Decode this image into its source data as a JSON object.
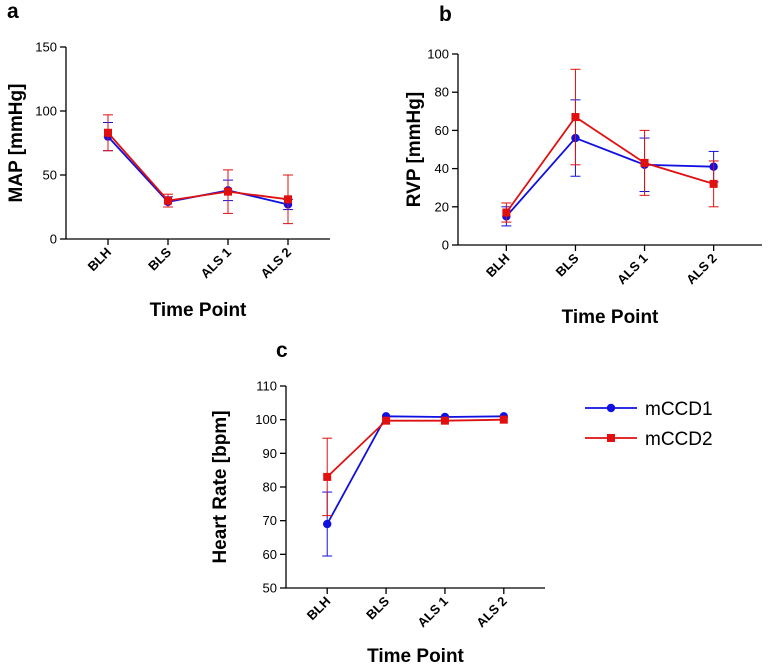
{
  "chart_data": [
    {
      "panel_label": "a",
      "type": "line",
      "categories": [
        "BLH",
        "BLS",
        "ALS 1",
        "ALS 2"
      ],
      "xlabel": "Time Point",
      "ylabel": "MAP [mmHg]",
      "ylim": [
        0,
        150
      ],
      "yticks": [
        0,
        50,
        100,
        150
      ],
      "grid": false,
      "series": [
        {
          "name": "mCCD1",
          "color": "#1010e0",
          "marker": "circle",
          "values": [
            80,
            29,
            38,
            27
          ],
          "errors": [
            11,
            4,
            8,
            4
          ]
        },
        {
          "name": "mCCD2",
          "color": "#e01010",
          "marker": "square",
          "values": [
            83,
            30,
            37,
            31
          ],
          "errors": [
            14,
            5,
            17,
            19
          ]
        }
      ]
    },
    {
      "panel_label": "b",
      "type": "line",
      "categories": [
        "BLH",
        "BLS",
        "ALS 1",
        "ALS 2"
      ],
      "xlabel": "Time Point",
      "ylabel": "RVP [mmHg]",
      "ylim": [
        0,
        100
      ],
      "yticks": [
        0,
        20,
        40,
        60,
        80,
        100
      ],
      "grid": false,
      "series": [
        {
          "name": "mCCD1",
          "color": "#1010e0",
          "marker": "circle",
          "values": [
            15,
            56,
            42,
            41
          ],
          "errors": [
            5,
            20,
            14,
            8
          ]
        },
        {
          "name": "mCCD2",
          "color": "#e01010",
          "marker": "square",
          "values": [
            17,
            67,
            43,
            32
          ],
          "errors": [
            5,
            25,
            17,
            12
          ]
        }
      ]
    },
    {
      "panel_label": "c",
      "type": "line",
      "categories": [
        "BLH",
        "BLS",
        "ALS 1",
        "ALS 2"
      ],
      "xlabel": "Time Point",
      "ylabel": "Heart Rate [bpm]",
      "ylim": [
        50,
        110
      ],
      "yticks": [
        50,
        60,
        70,
        80,
        90,
        100,
        110
      ],
      "grid": false,
      "legend_position": "right",
      "series": [
        {
          "name": "mCCD1",
          "color": "#1010e0",
          "marker": "circle",
          "values": [
            69,
            101,
            100.8,
            101
          ],
          "errors": [
            9.5,
            0,
            0,
            0
          ]
        },
        {
          "name": "mCCD2",
          "color": "#e01010",
          "marker": "square",
          "values": [
            83,
            99.7,
            99.7,
            100
          ],
          "errors": [
            11.5,
            0,
            0,
            0
          ]
        }
      ]
    }
  ],
  "legend": [
    {
      "label": "mCCD1",
      "color": "#1010e0",
      "marker": "circle"
    },
    {
      "label": "mCCD2",
      "color": "#e01010",
      "marker": "square"
    }
  ]
}
